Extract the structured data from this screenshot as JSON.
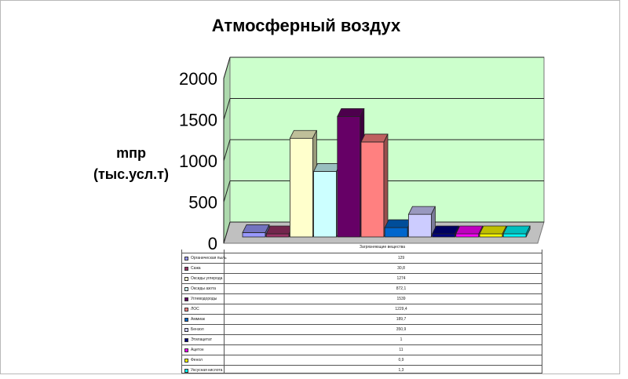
{
  "chart_data": {
    "type": "bar",
    "title": "Атмосферный воздух",
    "ylabel": "mпр\n(тыс.усл.т)",
    "xlabel": "Загрязняющие вещества",
    "ylim": [
      0,
      2000
    ],
    "yticks": [
      0,
      500,
      1000,
      1500,
      2000
    ],
    "grid": true,
    "categories": [
      "Органическая пыль",
      "Сажа",
      "Оксиды углерода",
      "Оксиды азота",
      "Углеводороды",
      "ЛОС",
      "Аммиак",
      "Бензол",
      "Этилацетат",
      "Ацетон",
      "Фенол",
      "Уксусная кислота"
    ],
    "values": [
      129,
      30.8,
      1274,
      872.1,
      1539,
      1229.4,
      189.7,
      350.9,
      1,
      11,
      0.9,
      1.3
    ],
    "value_labels": [
      "129",
      "30,8",
      "1274",
      "872,1",
      "1539",
      "1229,4",
      "189,7",
      "350,9",
      "1",
      "11",
      "0,9",
      "1,3"
    ],
    "colors": [
      "#9999ff",
      "#993366",
      "#ffffcc",
      "#ccffff",
      "#660066",
      "#ff8080",
      "#0066cc",
      "#ccccff",
      "#000080",
      "#ff00ff",
      "#ffff00",
      "#00ffff"
    ],
    "background": "#ccffcc"
  }
}
